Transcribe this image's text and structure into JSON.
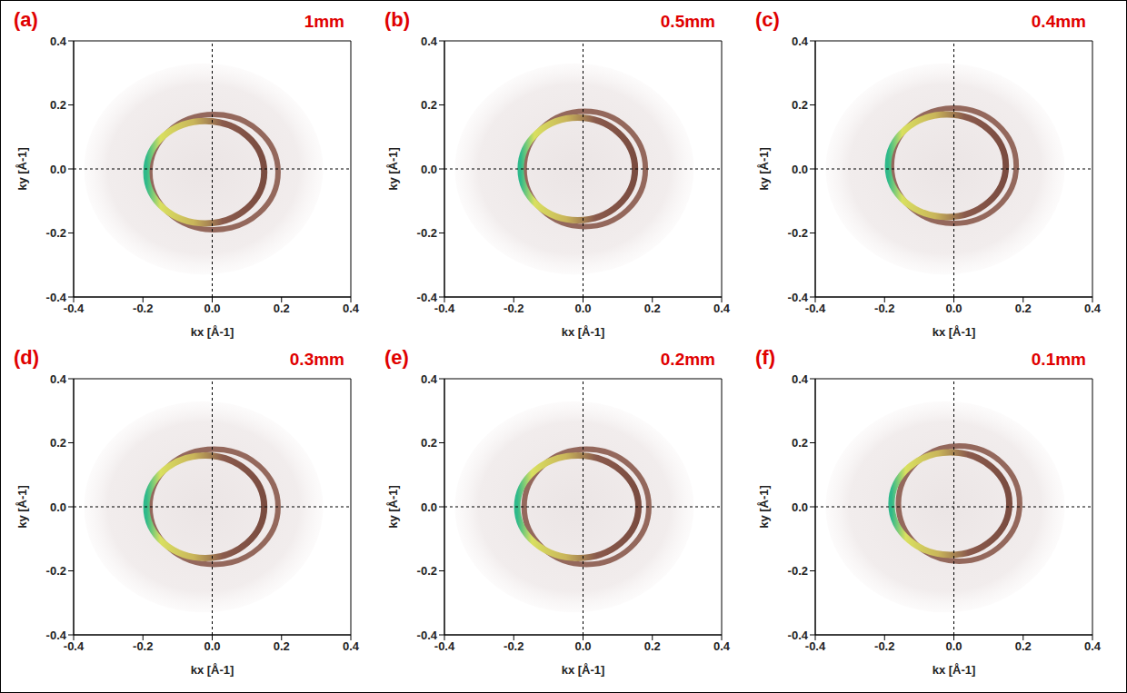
{
  "chart_data": [
    {
      "type": "map",
      "panel": "(a)",
      "label": "1mm",
      "x_label": "kx [Å-1]",
      "y_label": "ky [Å-1]",
      "xlim": [
        -0.4,
        0.4
      ],
      "ylim": [
        -0.4,
        0.4
      ],
      "xticks": [
        -0.4,
        -0.2,
        {
          "value": 0,
          "label": "0.0"
        },
        0.2,
        0.4
      ],
      "yticks": [
        -0.4,
        -0.2,
        {
          "value": 0,
          "label": "0.0"
        },
        0.2,
        0.4
      ],
      "reference_lines": {
        "x": 0,
        "y": 0
      },
      "intensity_region": {
        "x1": -0.37,
        "x2": 0.32,
        "y1": -0.33,
        "y2": 0.33
      },
      "outer_ring": {
        "x1": -0.18,
        "x2": 0.19,
        "y1": -0.19,
        "y2": 0.17
      },
      "inner_ring": {
        "x1": -0.19,
        "x2": 0.15,
        "y1": -0.17,
        "y2": 0.15
      }
    },
    {
      "type": "map",
      "panel": "(b)",
      "label": "0.5mm",
      "x_label": "kx [Å-1]",
      "y_label": "ky [Å-1]",
      "xlim": [
        -0.4,
        0.4
      ],
      "ylim": [
        -0.4,
        0.4
      ],
      "xticks": [
        -0.4,
        -0.2,
        {
          "value": 0,
          "label": "0.0"
        },
        0.2,
        0.4
      ],
      "yticks": [
        -0.4,
        -0.2,
        {
          "value": 0,
          "label": "0.0"
        },
        0.2,
        0.4
      ],
      "reference_lines": {
        "x": 0,
        "y": 0
      },
      "intensity_region": {
        "x1": -0.37,
        "x2": 0.32,
        "y1": -0.33,
        "y2": 0.33
      },
      "outer_ring": {
        "x1": -0.17,
        "x2": 0.18,
        "y1": -0.18,
        "y2": 0.18
      },
      "inner_ring": {
        "x1": -0.18,
        "x2": 0.15,
        "y1": -0.16,
        "y2": 0.16
      }
    },
    {
      "type": "map",
      "panel": "(c)",
      "label": "0.4mm",
      "x_label": "kx [Å-1]",
      "y_label": "ky [Å-1]",
      "xlim": [
        -0.4,
        0.4
      ],
      "ylim": [
        -0.4,
        0.4
      ],
      "xticks": [
        -0.4,
        -0.2,
        {
          "value": 0,
          "label": "0.0"
        },
        0.2,
        0.4
      ],
      "yticks": [
        -0.4,
        -0.2,
        {
          "value": 0,
          "label": "0.0"
        },
        0.2,
        0.4
      ],
      "reference_lines": {
        "x": 0,
        "y": 0
      },
      "intensity_region": {
        "x1": -0.37,
        "x2": 0.32,
        "y1": -0.33,
        "y2": 0.33
      },
      "outer_ring": {
        "x1": -0.18,
        "x2": 0.18,
        "y1": -0.17,
        "y2": 0.19
      },
      "inner_ring": {
        "x1": -0.19,
        "x2": 0.15,
        "y1": -0.15,
        "y2": 0.17
      }
    },
    {
      "type": "map",
      "panel": "(d)",
      "label": "0.3mm",
      "x_label": "kx [Å-1]",
      "y_label": "ky [Å-1]",
      "xlim": [
        -0.4,
        0.4
      ],
      "ylim": [
        -0.4,
        0.4
      ],
      "xticks": [
        -0.4,
        -0.2,
        {
          "value": 0,
          "label": "0.0"
        },
        0.2,
        0.4
      ],
      "yticks": [
        -0.4,
        -0.2,
        {
          "value": 0,
          "label": "0.0"
        },
        0.2,
        0.4
      ],
      "reference_lines": {
        "x": 0,
        "y": 0
      },
      "intensity_region": {
        "x1": -0.37,
        "x2": 0.32,
        "y1": -0.33,
        "y2": 0.33
      },
      "outer_ring": {
        "x1": -0.18,
        "x2": 0.19,
        "y1": -0.18,
        "y2": 0.18
      },
      "inner_ring": {
        "x1": -0.19,
        "x2": 0.15,
        "y1": -0.16,
        "y2": 0.16
      }
    },
    {
      "type": "map",
      "panel": "(e)",
      "label": "0.2mm",
      "x_label": "kx [Å-1]",
      "y_label": "ky [Å-1]",
      "xlim": [
        -0.4,
        0.4
      ],
      "ylim": [
        -0.4,
        0.4
      ],
      "xticks": [
        -0.4,
        -0.2,
        {
          "value": 0,
          "label": "0.0"
        },
        0.2,
        0.4
      ],
      "yticks": [
        -0.4,
        -0.2,
        {
          "value": 0,
          "label": "0.0"
        },
        0.2,
        0.4
      ],
      "reference_lines": {
        "x": 0,
        "y": 0
      },
      "intensity_region": {
        "x1": -0.37,
        "x2": 0.32,
        "y1": -0.33,
        "y2": 0.33
      },
      "outer_ring": {
        "x1": -0.17,
        "x2": 0.19,
        "y1": -0.18,
        "y2": 0.18
      },
      "inner_ring": {
        "x1": -0.19,
        "x2": 0.16,
        "y1": -0.16,
        "y2": 0.16
      }
    },
    {
      "type": "map",
      "panel": "(f)",
      "label": "0.1mm",
      "x_label": "kx [Å-1]",
      "y_label": "ky [Å-1]",
      "xlim": [
        -0.4,
        0.4
      ],
      "ylim": [
        -0.4,
        0.4
      ],
      "xticks": [
        -0.4,
        -0.2,
        {
          "value": 0,
          "label": "0.0"
        },
        0.2,
        0.4
      ],
      "yticks": [
        -0.4,
        -0.2,
        {
          "value": 0,
          "label": "0.0"
        },
        0.2,
        0.4
      ],
      "reference_lines": {
        "x": 0,
        "y": 0
      },
      "intensity_region": {
        "x1": -0.37,
        "x2": 0.32,
        "y1": -0.33,
        "y2": 0.33
      },
      "outer_ring": {
        "x1": -0.16,
        "x2": 0.19,
        "y1": -0.17,
        "y2": 0.19
      },
      "inner_ring": {
        "x1": -0.18,
        "x2": 0.16,
        "y1": -0.15,
        "y2": 0.17
      }
    }
  ]
}
